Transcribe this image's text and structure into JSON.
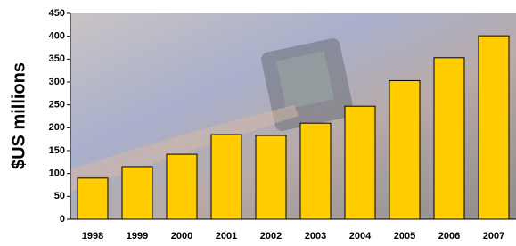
{
  "chart_data": {
    "type": "bar",
    "y_label": "$US millions",
    "categories": [
      "1998",
      "1999",
      "2000",
      "2001",
      "2002",
      "2003",
      "2004",
      "2005",
      "2006",
      "2007"
    ],
    "values": [
      90,
      115,
      142,
      185,
      183,
      210,
      247,
      303,
      353,
      401
    ],
    "color": "#ffcc00",
    "ylim": [
      0,
      450
    ],
    "yticks": [
      0,
      50,
      100,
      150,
      200,
      250,
      300,
      350,
      400,
      450
    ],
    "grid": false
  }
}
